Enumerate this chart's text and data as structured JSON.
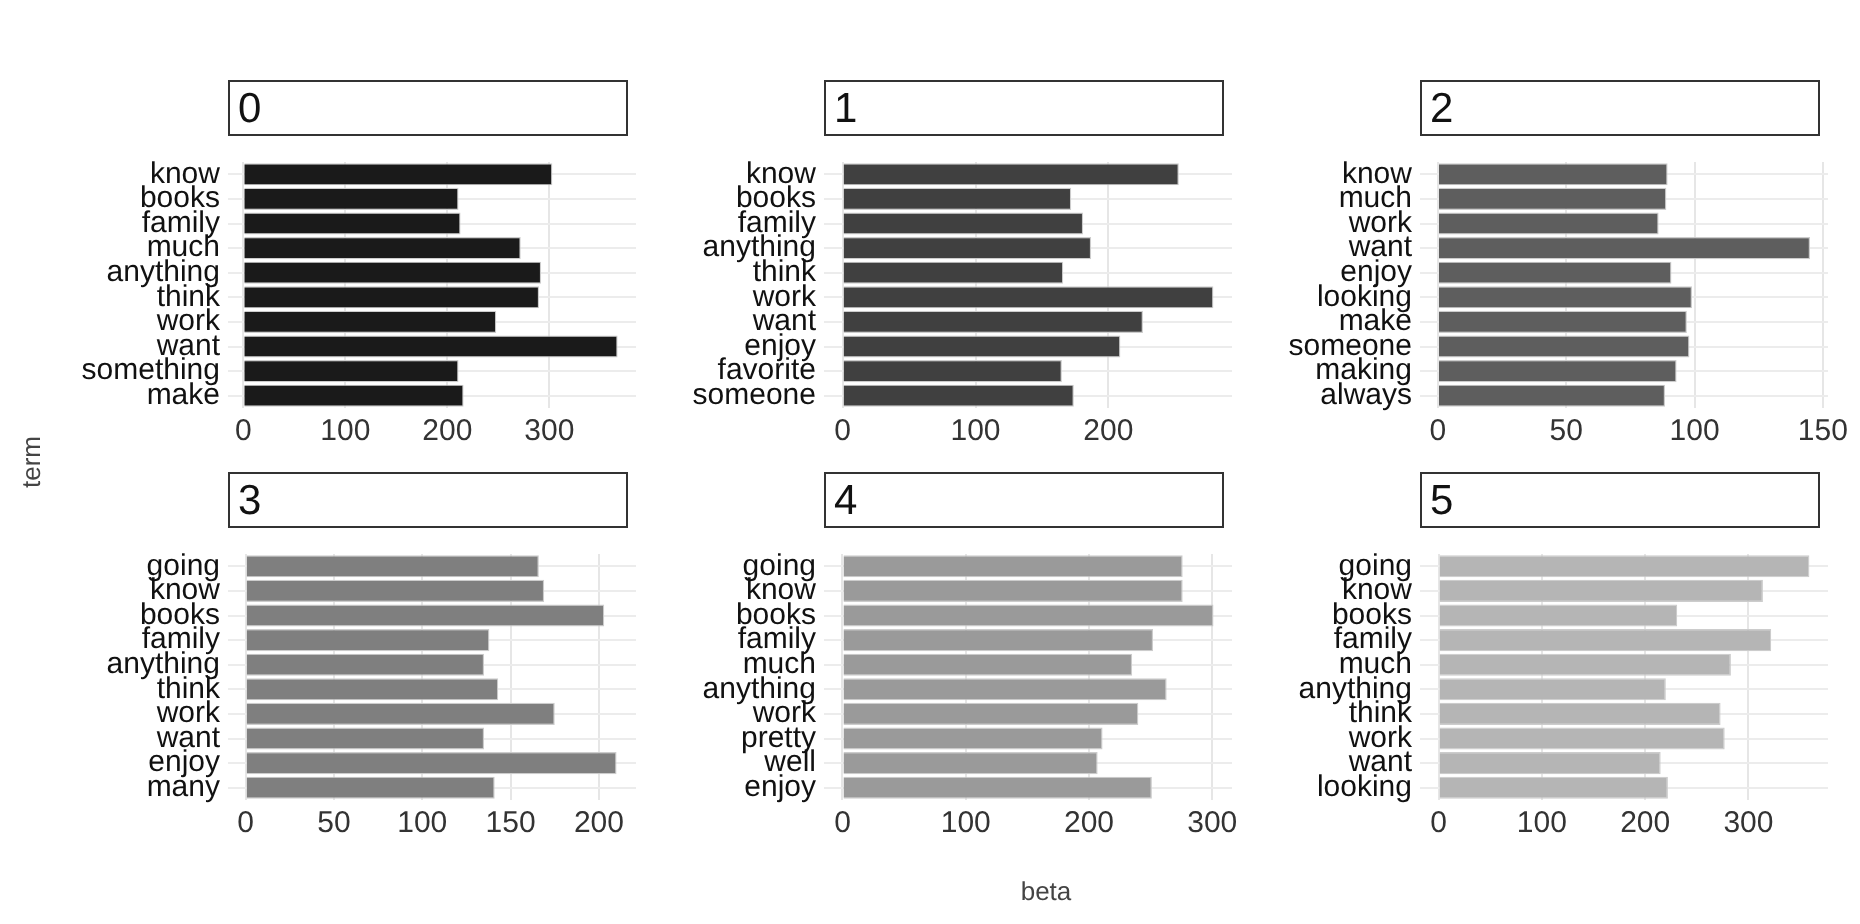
{
  "chart_data": [
    {
      "type": "bar",
      "orientation": "horizontal",
      "title": "0",
      "ylabel": "term",
      "categories": [
        "know",
        "books",
        "family",
        "much",
        "anything",
        "think",
        "work",
        "want",
        "something",
        "make"
      ],
      "values": [
        303,
        211,
        213,
        272,
        292,
        290,
        248,
        367,
        211,
        216
      ],
      "color": "#1a1a1a",
      "xlim": [
        -15,
        385
      ],
      "xticks": [
        0,
        100,
        200,
        300
      ],
      "grid": true
    },
    {
      "type": "bar",
      "orientation": "horizontal",
      "title": "1",
      "categories": [
        "know",
        "books",
        "family",
        "anything",
        "think",
        "work",
        "want",
        "enjoy",
        "favorite",
        "someone"
      ],
      "values": [
        253,
        172,
        181,
        187,
        166,
        279,
        226,
        209,
        165,
        174
      ],
      "color": "#404040",
      "xlim": [
        -14,
        293
      ],
      "xticks": [
        0,
        100,
        200
      ],
      "grid": true
    },
    {
      "type": "bar",
      "orientation": "horizontal",
      "title": "2",
      "categories": [
        "know",
        "much",
        "work",
        "want",
        "enjoy",
        "looking",
        "make",
        "someone",
        "making",
        "always"
      ],
      "values": [
        89.5,
        89,
        86,
        145,
        91,
        99,
        97,
        98,
        93,
        88.5
      ],
      "color": "#5e5e5e",
      "xlim": [
        -7,
        152
      ],
      "xticks": [
        0,
        50,
        100,
        150
      ],
      "grid": true
    },
    {
      "type": "bar",
      "orientation": "horizontal",
      "title": "3",
      "categories": [
        "going",
        "know",
        "books",
        "family",
        "anything",
        "think",
        "work",
        "want",
        "enjoy",
        "many"
      ],
      "values": [
        166,
        169,
        203,
        138,
        135,
        143,
        175,
        135,
        210,
        141
      ],
      "color": "#7f7f7f",
      "xlim": [
        -10,
        221
      ],
      "xticks": [
        0,
        50,
        100,
        150,
        200
      ],
      "grid": true
    },
    {
      "type": "bar",
      "orientation": "horizontal",
      "title": "4",
      "xlabel": "beta",
      "categories": [
        "going",
        "know",
        "books",
        "family",
        "much",
        "anything",
        "work",
        "pretty",
        "well",
        "enjoy"
      ],
      "values": [
        276,
        276,
        301,
        252,
        235,
        263,
        240,
        211,
        207,
        251
      ],
      "color": "#9a9a9a",
      "xlim": [
        -15,
        316
      ],
      "xticks": [
        0,
        100,
        200,
        300
      ],
      "grid": true
    },
    {
      "type": "bar",
      "orientation": "horizontal",
      "title": "5",
      "categories": [
        "going",
        "know",
        "books",
        "family",
        "much",
        "anything",
        "think",
        "work",
        "want",
        "looking"
      ],
      "values": [
        359,
        314,
        231,
        322,
        283,
        220,
        273,
        277,
        215,
        222
      ],
      "color": "#b5b5b5",
      "xlim": [
        -18,
        377
      ],
      "xticks": [
        0,
        100,
        200,
        300
      ],
      "grid": true
    }
  ]
}
